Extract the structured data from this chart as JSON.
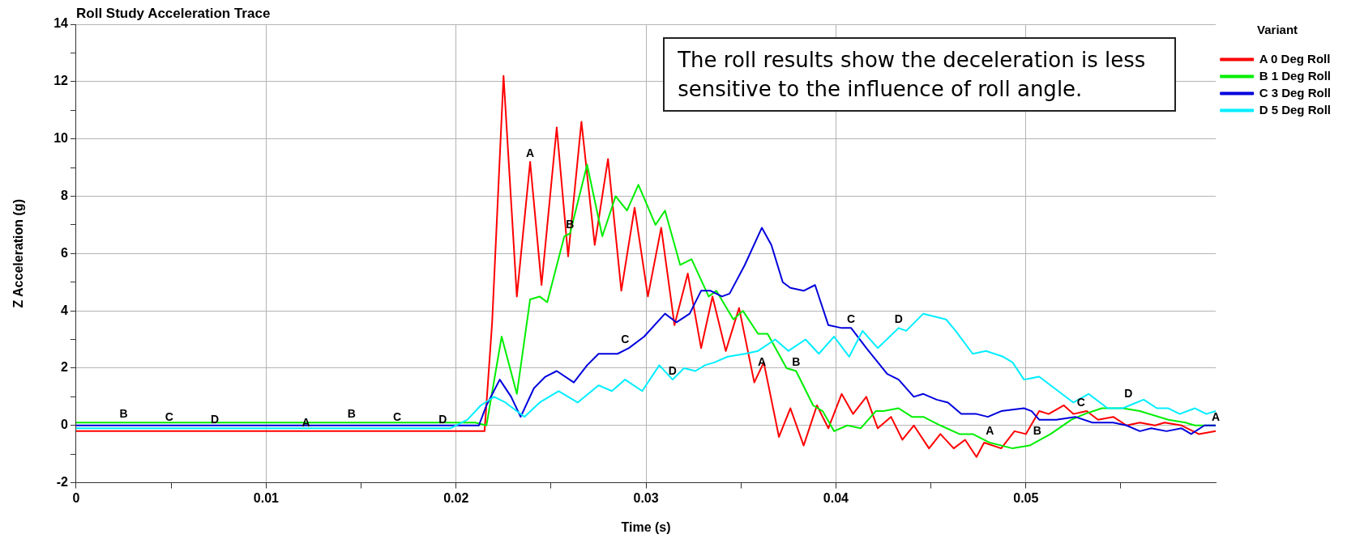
{
  "chart_data": {
    "type": "line",
    "title": "Roll Study Acceleration Trace",
    "xlabel": "Time (s)",
    "ylabel": "Z Acceleration (g)",
    "legend_title": "Variant",
    "legend": "right",
    "grid": true,
    "xlim": [
      0,
      0.06
    ],
    "ylim": [
      -2,
      14
    ],
    "xticks": [
      0,
      {
        "value": 0.005,
        "label": null
      },
      0.01,
      {
        "value": 0.015,
        "label": null
      },
      0.02,
      {
        "value": 0.025,
        "label": null
      },
      0.03,
      {
        "value": 0.035,
        "label": null
      },
      0.04,
      {
        "value": 0.045,
        "label": null
      },
      0.05,
      {
        "value": 0.055,
        "label": null
      }
    ],
    "yticks": [
      -2,
      {
        "value": -1,
        "label": null
      },
      0,
      {
        "value": 1,
        "label": null
      },
      2,
      {
        "value": 3,
        "label": null
      },
      4,
      {
        "value": 5,
        "label": null
      },
      6,
      {
        "value": 7,
        "label": null
      },
      8,
      {
        "value": 9,
        "label": null
      },
      10,
      {
        "value": 11,
        "label": null
      },
      12,
      {
        "value": 13,
        "label": null
      },
      14
    ],
    "series": [
      {
        "name": "A 0 Deg Roll",
        "color": "#ff0000",
        "x": [
          0,
          0.0205,
          0.0215,
          0.0219,
          0.0225,
          0.0232,
          0.0239,
          0.0245,
          0.0253,
          0.0259,
          0.0266,
          0.0273,
          0.028,
          0.0287,
          0.0294,
          0.0301,
          0.0308,
          0.0315,
          0.0322,
          0.0329,
          0.0335,
          0.0342,
          0.0349,
          0.0357,
          0.0362,
          0.037,
          0.0376,
          0.0383,
          0.039,
          0.0396,
          0.0403,
          0.0409,
          0.0416,
          0.0422,
          0.0429,
          0.0435,
          0.0441,
          0.0449,
          0.0455,
          0.0462,
          0.0468,
          0.0474,
          0.0478,
          0.0487,
          0.0494,
          0.05,
          0.0507,
          0.0512,
          0.052,
          0.0525,
          0.0532,
          0.0538,
          0.0546,
          0.0553,
          0.056,
          0.0568,
          0.0573,
          0.0582,
          0.0591,
          0.06
        ],
        "values": [
          -0.2,
          -0.2,
          -0.2,
          3.6,
          12.2,
          4.5,
          9.2,
          4.9,
          10.4,
          5.9,
          10.6,
          6.3,
          9.3,
          4.7,
          7.6,
          4.5,
          6.9,
          3.5,
          5.3,
          2.7,
          4.5,
          2.6,
          4.1,
          1.5,
          2.2,
          -0.4,
          0.6,
          -0.7,
          0.7,
          -0.1,
          1.1,
          0.4,
          1,
          -0.1,
          0.3,
          -0.5,
          0,
          -0.8,
          -0.3,
          -0.8,
          -0.5,
          -1.1,
          -0.6,
          -0.8,
          -0.2,
          -0.3,
          0.5,
          0.4,
          0.7,
          0.4,
          0.5,
          0.2,
          0.3,
          0,
          0.1,
          0,
          0.1,
          0,
          -0.3,
          -0.2
        ]
      },
      {
        "name": "B 1 Deg Roll",
        "color": "#00ee00",
        "x": [
          0,
          0.021,
          0.0216,
          0.0224,
          0.0232,
          0.0239,
          0.0244,
          0.0248,
          0.0257,
          0.026,
          0.0269,
          0.0277,
          0.0284,
          0.029,
          0.0296,
          0.0305,
          0.031,
          0.0318,
          0.0324,
          0.0333,
          0.0337,
          0.0346,
          0.0351,
          0.0359,
          0.0364,
          0.0374,
          0.0379,
          0.0388,
          0.0393,
          0.0399,
          0.0406,
          0.0413,
          0.0421,
          0.0425,
          0.0433,
          0.044,
          0.0446,
          0.0455,
          0.0465,
          0.0472,
          0.0481,
          0.0493,
          0.0502,
          0.0513,
          0.0524,
          0.0531,
          0.054,
          0.0551,
          0.056,
          0.0575,
          0.0584,
          0.0589,
          0.06
        ],
        "values": [
          0.1,
          0.1,
          0,
          3.1,
          1.1,
          4.4,
          4.5,
          4.3,
          6.6,
          6.7,
          9.1,
          6.6,
          8,
          7.5,
          8.4,
          7,
          7.5,
          5.6,
          5.8,
          4.5,
          4.7,
          3.7,
          4,
          3.2,
          3.2,
          2,
          1.9,
          0.7,
          0.5,
          -0.2,
          0,
          -0.1,
          0.5,
          0.5,
          0.6,
          0.3,
          0.3,
          0,
          -0.3,
          -0.3,
          -0.6,
          -0.8,
          -0.7,
          -0.3,
          0.2,
          0.4,
          0.6,
          0.6,
          0.5,
          0.2,
          0.1,
          0,
          0
        ]
      },
      {
        "name": "C 3 Deg Roll",
        "color": "#0000dd",
        "x": [
          0,
          0.0212,
          0.0216,
          0.0223,
          0.0229,
          0.0234,
          0.0241,
          0.0247,
          0.0253,
          0.0262,
          0.0269,
          0.0275,
          0.0285,
          0.0291,
          0.0299,
          0.031,
          0.0316,
          0.0323,
          0.0329,
          0.0334,
          0.034,
          0.0344,
          0.0352,
          0.0361,
          0.0366,
          0.0372,
          0.0376,
          0.0383,
          0.0389,
          0.0396,
          0.0403,
          0.0408,
          0.0416,
          0.0427,
          0.0433,
          0.0441,
          0.0446,
          0.0453,
          0.0459,
          0.0466,
          0.0474,
          0.048,
          0.0487,
          0.0499,
          0.0503,
          0.0507,
          0.0516,
          0.0526,
          0.0535,
          0.0546,
          0.0553,
          0.056,
          0.0566,
          0.0574,
          0.0582,
          0.0587,
          0.0594,
          0.06
        ],
        "values": [
          0,
          0,
          0.7,
          1.6,
          1,
          0.3,
          1.3,
          1.7,
          1.9,
          1.5,
          2.1,
          2.5,
          2.5,
          2.7,
          3.1,
          3.9,
          3.6,
          3.9,
          4.7,
          4.7,
          4.5,
          4.6,
          5.6,
          6.9,
          6.3,
          5,
          4.8,
          4.7,
          4.9,
          3.5,
          3.4,
          3.4,
          2.7,
          1.8,
          1.6,
          1,
          1.1,
          0.9,
          0.8,
          0.4,
          0.4,
          0.3,
          0.5,
          0.6,
          0.5,
          0.2,
          0.2,
          0.3,
          0.1,
          0.1,
          0,
          -0.2,
          -0.1,
          -0.2,
          -0.1,
          -0.3,
          0,
          0
        ]
      },
      {
        "name": "D 5 Deg Roll",
        "color": "#00eeff",
        "x": [
          0,
          0.0197,
          0.0206,
          0.0213,
          0.022,
          0.0226,
          0.0236,
          0.0244,
          0.0254,
          0.0264,
          0.0275,
          0.0282,
          0.0289,
          0.0298,
          0.0307,
          0.0314,
          0.032,
          0.0326,
          0.0331,
          0.0336,
          0.0343,
          0.0352,
          0.0359,
          0.0368,
          0.0375,
          0.0384,
          0.0391,
          0.0399,
          0.0407,
          0.0414,
          0.0422,
          0.0433,
          0.0437,
          0.0446,
          0.0452,
          0.0458,
          0.0463,
          0.0472,
          0.0479,
          0.0488,
          0.0493,
          0.0499,
          0.0507,
          0.0515,
          0.0525,
          0.0533,
          0.0543,
          0.0551,
          0.0562,
          0.0569,
          0.0575,
          0.0581,
          0.0589,
          0.0595,
          0.06
        ],
        "values": [
          -0.1,
          -0.1,
          0.2,
          0.7,
          1,
          0.8,
          0.3,
          0.8,
          1.2,
          0.8,
          1.4,
          1.2,
          1.6,
          1.2,
          2.1,
          1.6,
          2,
          1.9,
          2.1,
          2.2,
          2.4,
          2.5,
          2.6,
          3,
          2.6,
          3,
          2.5,
          3.1,
          2.4,
          3.3,
          2.7,
          3.4,
          3.3,
          3.9,
          3.8,
          3.7,
          3.3,
          2.5,
          2.6,
          2.4,
          2.2,
          1.6,
          1.7,
          1.3,
          0.8,
          1.1,
          0.6,
          0.6,
          0.9,
          0.6,
          0.6,
          0.4,
          0.6,
          0.4,
          0.5
        ]
      }
    ],
    "annotations": [
      "The roll results show the deceleration is less sensitive to the influence of roll angle.",
      {
        "text": "B",
        "x": 0.0025,
        "y": 0.1
      },
      {
        "text": "C",
        "x": 0.0049,
        "y": 0
      },
      {
        "text": "D",
        "x": 0.0073,
        "y": -0.1
      },
      {
        "text": "A",
        "x": 0.0121,
        "y": -0.2
      },
      {
        "text": "B",
        "x": 0.0145,
        "y": 0.1
      },
      {
        "text": "C",
        "x": 0.0169,
        "y": 0
      },
      {
        "text": "D",
        "x": 0.0193,
        "y": -0.1
      },
      {
        "text": "A",
        "x": 0.0239,
        "y": 9.2
      },
      {
        "text": "B",
        "x": 0.026,
        "y": 6.7
      },
      {
        "text": "C",
        "x": 0.0289,
        "y": 2.7
      },
      {
        "text": "D",
        "x": 0.0314,
        "y": 1.6
      },
      {
        "text": "A",
        "x": 0.0361,
        "y": 1.9
      },
      {
        "text": "B",
        "x": 0.0379,
        "y": 1.9
      },
      {
        "text": "C",
        "x": 0.0408,
        "y": 3.4
      },
      {
        "text": "D",
        "x": 0.0433,
        "y": 3.4
      },
      {
        "text": "A",
        "x": 0.0481,
        "y": -0.5
      },
      {
        "text": "B",
        "x": 0.0506,
        "y": -0.5
      },
      {
        "text": "C",
        "x": 0.0529,
        "y": 0.5
      },
      {
        "text": "D",
        "x": 0.0554,
        "y": 0.8
      },
      {
        "text": "A",
        "x": 0.06,
        "y": 0
      }
    ]
  }
}
